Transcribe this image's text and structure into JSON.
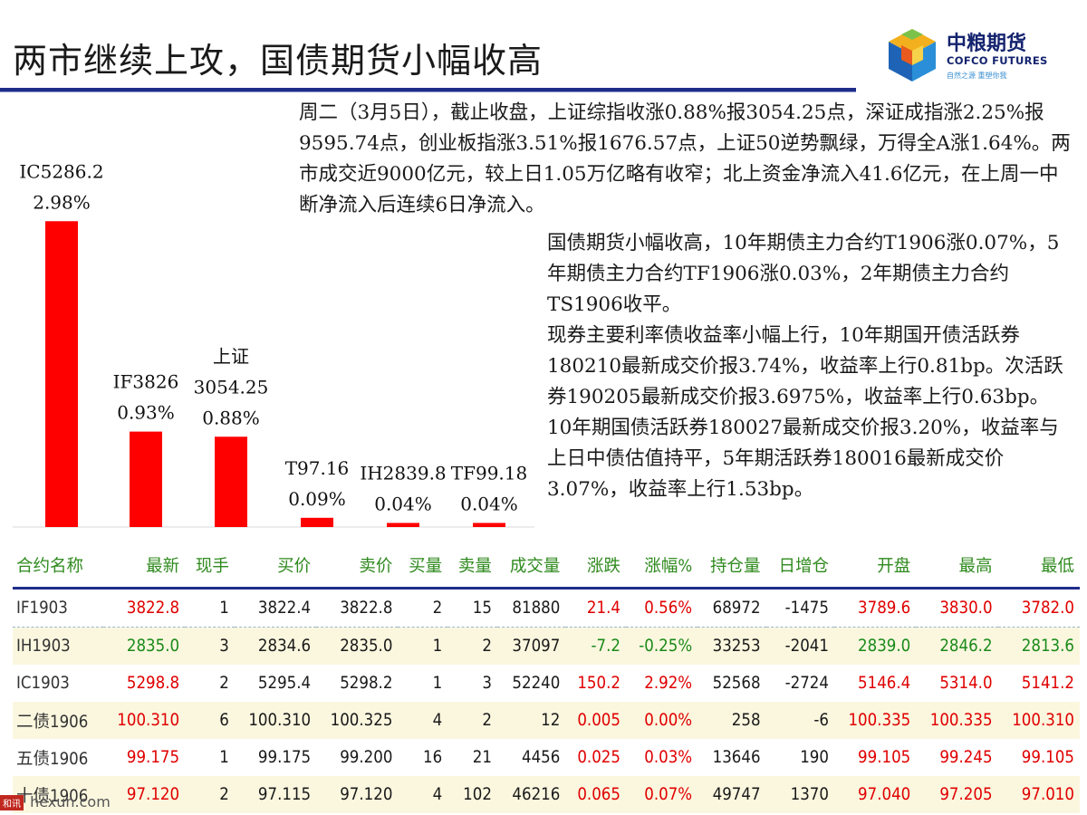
{
  "title": "两市继续上攻，国债期货小幅收高",
  "logo": {
    "cn": "中粮期货",
    "en": "COFCO FUTURES",
    "slogan": "自然之源 重塑你我"
  },
  "para1": "周二（3月5日），截止收盘，上证综指收涨0.88%报3054.25点，深证成指涨2.25%报9595.74点，创业板指涨3.51%报1676.57点，上证50逆势飘绿，万得全A涨1.64%。两市成交近9000亿元，较上日1.05万亿略有收窄；北上资金净流入41.6亿元，在上周一中断净流入后连续6日净流入。",
  "para2": {
    "line1": "国债期货小幅收高，10年期债主力合约T1906涨0.07%，5年期债主力合约TF1906涨0.03%，2年期债主力合约TS1906收平。",
    "line2": "现券主要利率债收益率小幅上行，10年期国开债活跃券180210最新成交价报3.74%，收益率上行0.81bp。次活跃券190205最新成交价报3.6975%，收益率上行0.63bp。10年期国债活跃券180027最新成交价报3.20%，收益率与上日中债估值持平，5年期活跃券180016最新成交价3.07%，收益率上行1.53bp。"
  },
  "chart_data": {
    "type": "bar",
    "categories": [
      "IC",
      "IF",
      "上证",
      "T",
      "IH",
      "TF"
    ],
    "labels": [
      [
        "IC5286.2",
        "2.98%"
      ],
      [
        "IF3826",
        "0.93%"
      ],
      [
        "上证",
        "3054.25",
        "0.88%"
      ],
      [
        "T97.16",
        "0.09%"
      ],
      [
        "IH2839.8",
        "0.04%"
      ],
      [
        "TF99.18",
        "0.04%"
      ]
    ],
    "values": [
      2.98,
      0.93,
      0.88,
      0.09,
      0.04,
      0.04
    ],
    "ylim": [
      0,
      3
    ],
    "bar_color": "#ff0000"
  },
  "table": {
    "headers": [
      "合约名称",
      "最新",
      "现手",
      "买价",
      "卖价",
      "买量",
      "卖量",
      "成交量",
      "涨跌",
      "涨幅%",
      "持仓量",
      "日增仓",
      "开盘",
      "最高",
      "最低"
    ],
    "rows": [
      [
        "IF1903",
        "3822.8",
        "1",
        "3822.4",
        "3822.8",
        "2",
        "15",
        "81880",
        "21.4",
        "0.56%",
        "68972",
        "-1475",
        "3789.6",
        "3830.0",
        "3782.0"
      ],
      [
        "IH1903",
        "2835.0",
        "3",
        "2834.6",
        "2835.0",
        "1",
        "2",
        "37097",
        "-7.2",
        "-0.25%",
        "33253",
        "-2041",
        "2839.0",
        "2846.2",
        "2813.6"
      ],
      [
        "IC1903",
        "5298.8",
        "2",
        "5295.4",
        "5298.2",
        "1",
        "3",
        "52240",
        "150.2",
        "2.92%",
        "52568",
        "-2724",
        "5146.4",
        "5314.0",
        "5141.2"
      ],
      [
        "二债1906",
        "100.310",
        "6",
        "100.310",
        "100.325",
        "4",
        "2",
        "12",
        "0.005",
        "0.00%",
        "258",
        "-6",
        "100.335",
        "100.335",
        "100.310"
      ],
      [
        "五债1906",
        "99.175",
        "1",
        "99.175",
        "99.200",
        "16",
        "21",
        "4456",
        "0.025",
        "0.03%",
        "13646",
        "190",
        "99.105",
        "99.245",
        "99.105"
      ],
      [
        "十债1906",
        "97.120",
        "2",
        "97.115",
        "97.120",
        "4",
        "102",
        "46216",
        "0.065",
        "0.07%",
        "49747",
        "1370",
        "97.040",
        "97.205",
        "97.010"
      ]
    ],
    "row_colors": [
      [
        "",
        "up",
        "",
        "",
        "",
        "",
        "",
        "",
        "up",
        "up",
        "",
        "",
        "up",
        "up",
        "up"
      ],
      [
        "",
        "down",
        "",
        "",
        "",
        "",
        "",
        "",
        "down",
        "down",
        "",
        "",
        "down",
        "down",
        "down"
      ],
      [
        "",
        "up",
        "",
        "",
        "",
        "",
        "",
        "",
        "up",
        "up",
        "",
        "",
        "up",
        "up",
        "up"
      ],
      [
        "",
        "up",
        "",
        "",
        "",
        "",
        "",
        "",
        "up",
        "up",
        "",
        "",
        "up",
        "up",
        "up"
      ],
      [
        "",
        "up",
        "",
        "",
        "",
        "",
        "",
        "",
        "up",
        "up",
        "",
        "",
        "up",
        "up",
        "up"
      ],
      [
        "",
        "up",
        "",
        "",
        "",
        "",
        "",
        "",
        "up",
        "up",
        "",
        "",
        "up",
        "up",
        "up"
      ]
    ]
  },
  "watermark": {
    "badge": "和讯",
    "site": "hexun.com"
  }
}
